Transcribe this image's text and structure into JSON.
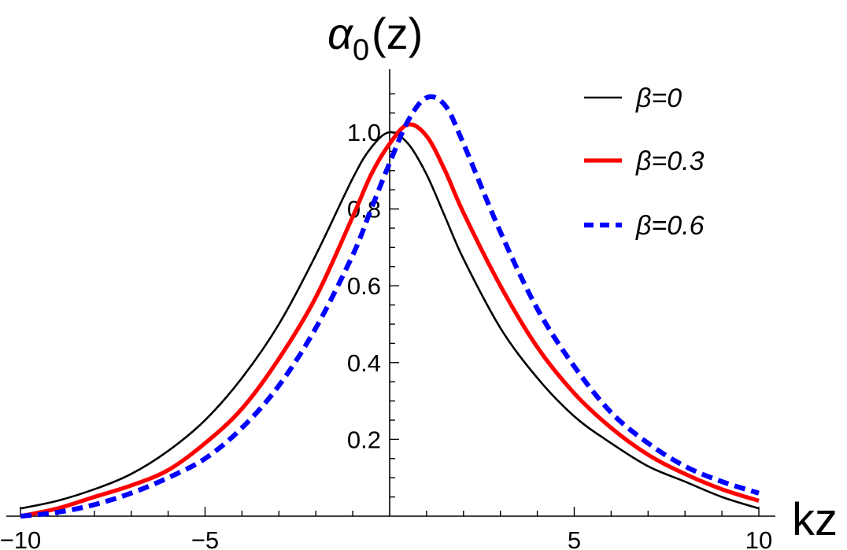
{
  "chart_data": {
    "type": "line",
    "title": "α0(z)",
    "title_main": "α",
    "title_sub": "0",
    "title_arg": "(z)",
    "xlabel": "kz",
    "ylabel": "",
    "xlim": [
      -10,
      10
    ],
    "ylim": [
      0,
      1.13
    ],
    "x_ticks": [
      -10,
      -5,
      5,
      10
    ],
    "x_tick_labels": [
      "−10",
      "−5",
      "5",
      "10"
    ],
    "y_ticks": [
      0.2,
      0.4,
      0.6,
      0.8,
      1.0
    ],
    "y_tick_labels": [
      "0.2",
      "0.4",
      "0.6",
      "0.8",
      "1.0"
    ],
    "legend_position": "top-right",
    "x": [
      -10,
      -9,
      -8,
      -7,
      -6,
      -5,
      -4,
      -3,
      -2,
      -1,
      -0.5,
      0,
      0.5,
      1,
      1.5,
      2,
      3,
      4,
      5,
      6,
      7,
      8,
      9,
      10
    ],
    "series": [
      {
        "name": "β=0",
        "color": "#000000",
        "style": "solid",
        "values": [
          0.02,
          0.04,
          0.07,
          0.11,
          0.17,
          0.25,
          0.36,
          0.5,
          0.68,
          0.88,
          0.96,
          1.0,
          0.97,
          0.89,
          0.78,
          0.67,
          0.49,
          0.36,
          0.26,
          0.19,
          0.13,
          0.09,
          0.05,
          0.02
        ]
      },
      {
        "name": "β=0.3",
        "color": "#ff0000",
        "style": "solid",
        "values": [
          0.0,
          0.02,
          0.05,
          0.08,
          0.12,
          0.19,
          0.28,
          0.41,
          0.57,
          0.78,
          0.89,
          0.97,
          1.02,
          0.99,
          0.9,
          0.79,
          0.6,
          0.44,
          0.32,
          0.23,
          0.16,
          0.11,
          0.07,
          0.04
        ]
      },
      {
        "name": "β=0.6",
        "color": "#0000ff",
        "style": "dashed",
        "values": [
          0.0,
          0.01,
          0.03,
          0.06,
          0.1,
          0.15,
          0.23,
          0.34,
          0.49,
          0.68,
          0.8,
          0.92,
          1.03,
          1.09,
          1.07,
          0.97,
          0.74,
          0.54,
          0.39,
          0.27,
          0.19,
          0.13,
          0.09,
          0.06
        ]
      }
    ]
  }
}
